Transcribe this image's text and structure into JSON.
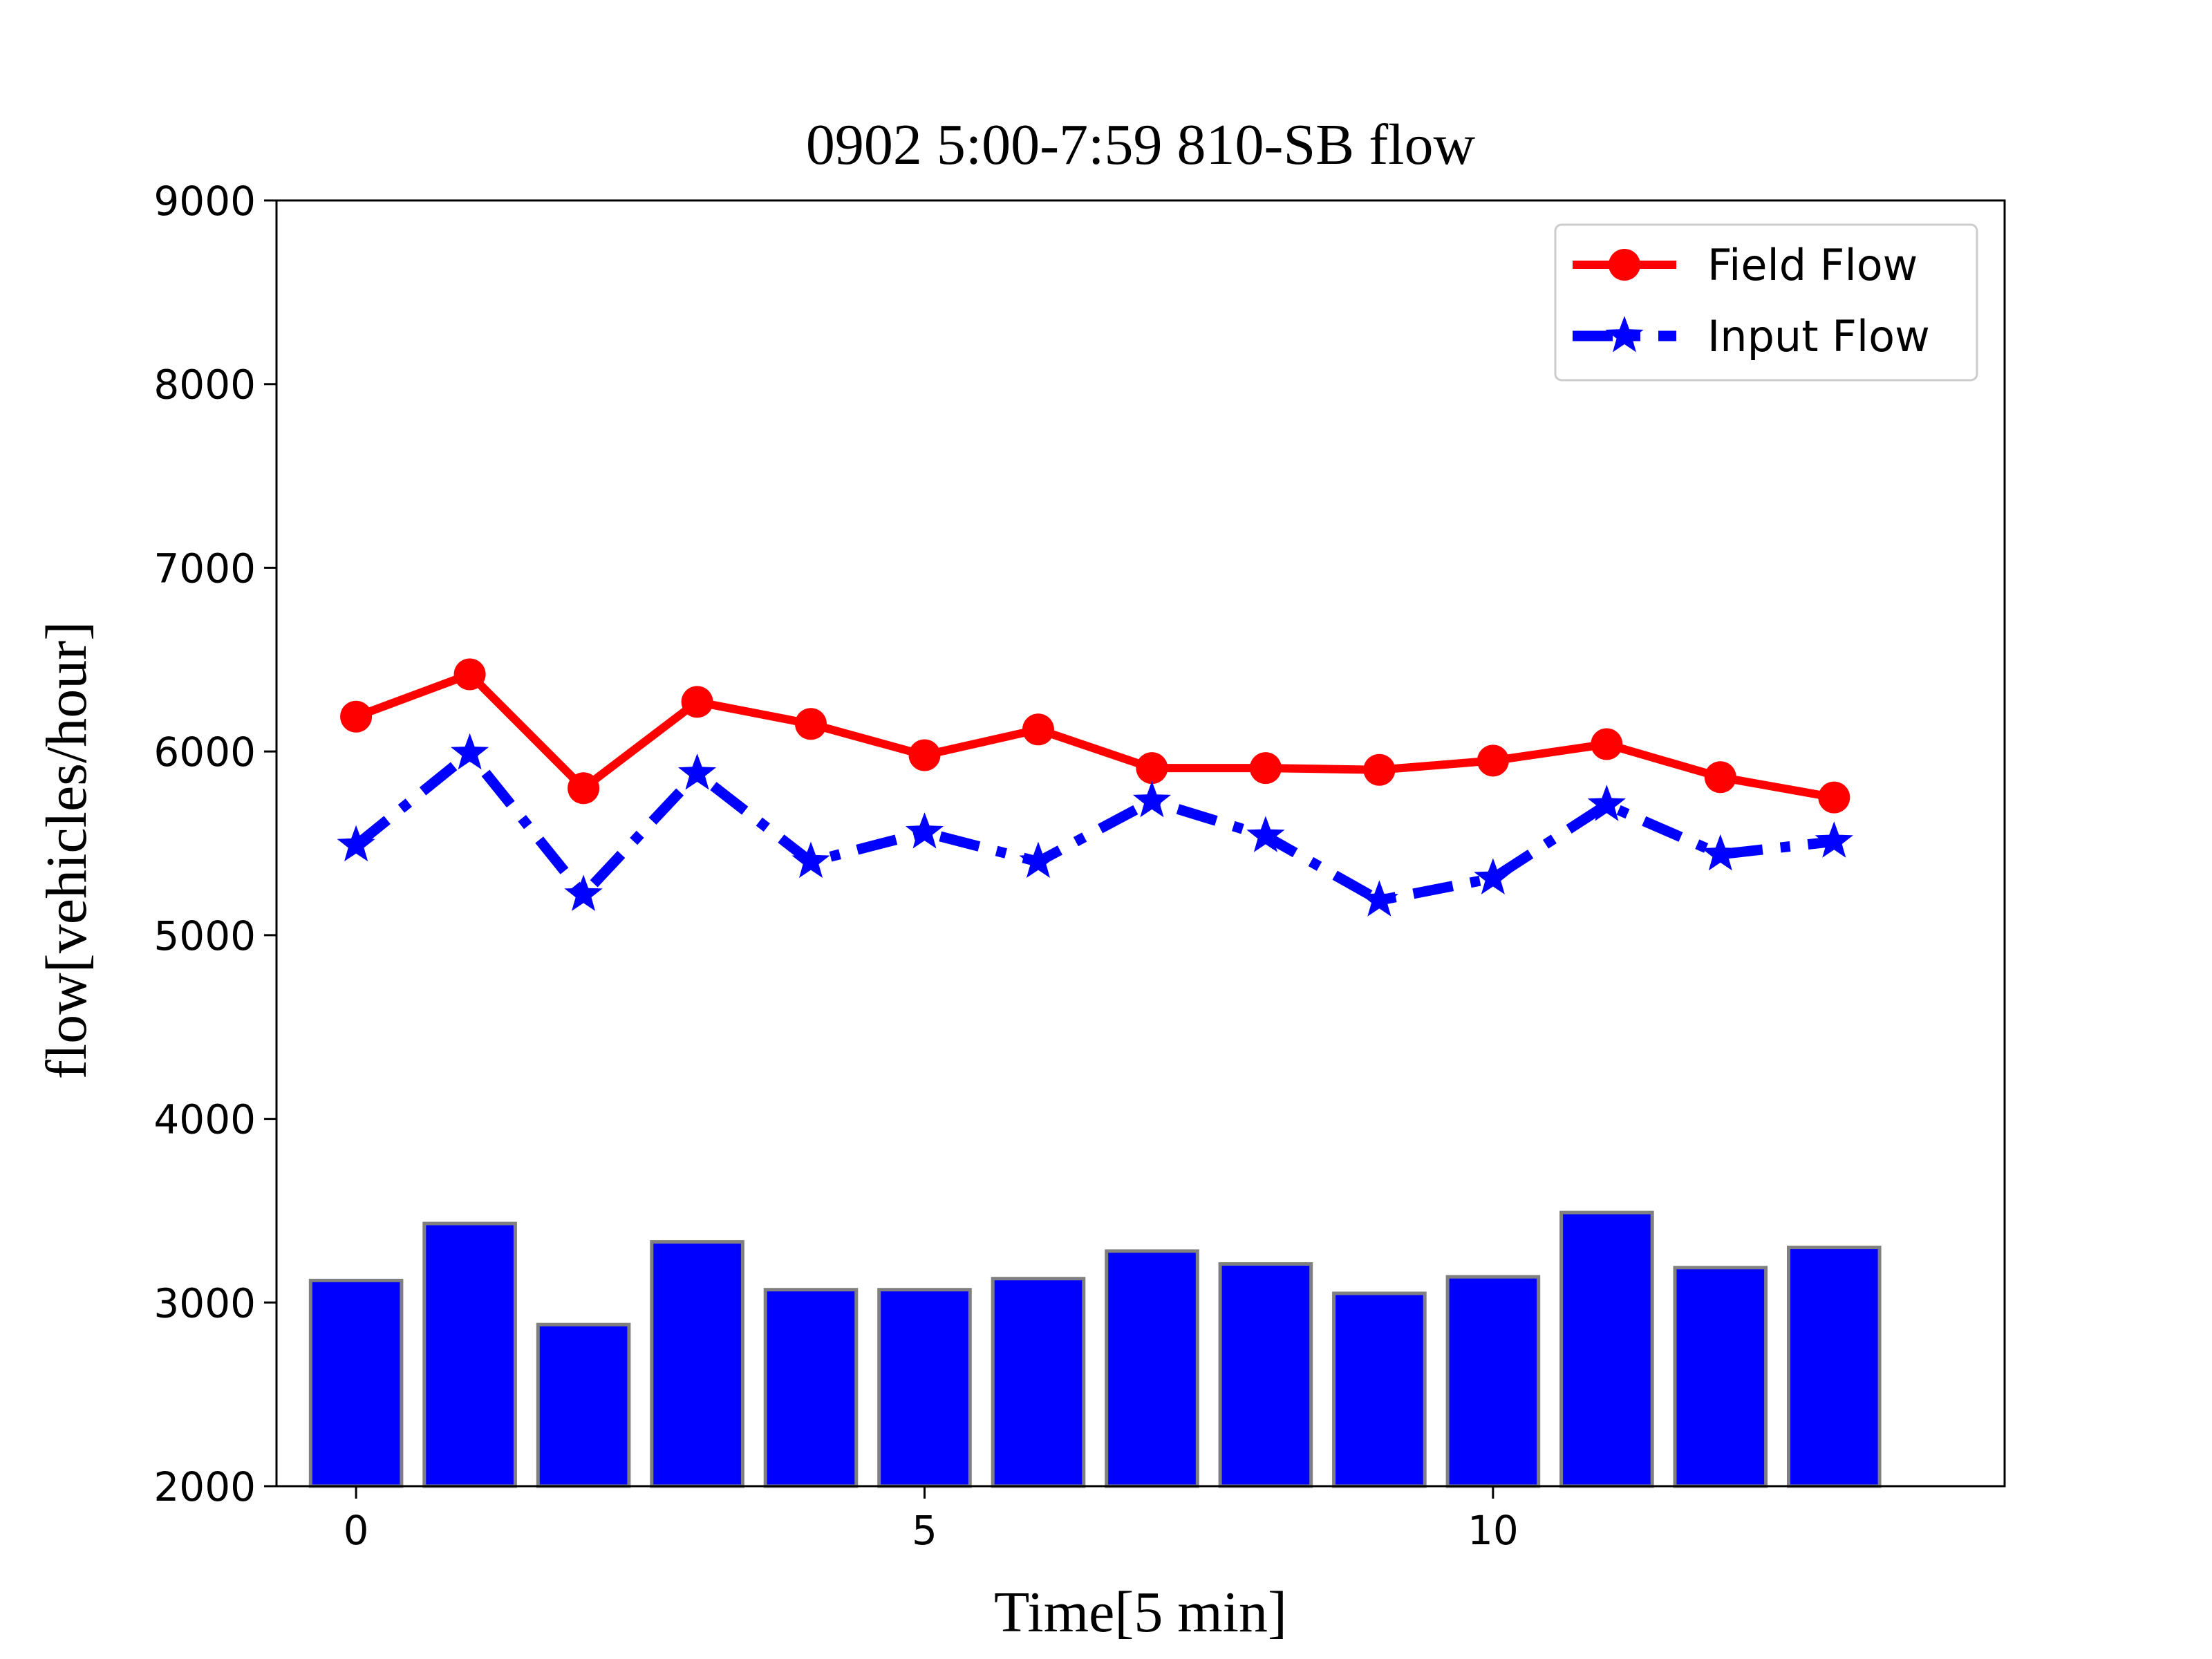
{
  "chart_data": {
    "type": "bar",
    "title": "0902 5:00-7:59  810-SB flow",
    "xlabel": "Time[5 min]",
    "ylabel": "flow[vehicles/hour]",
    "xlim": [
      -0.7,
      14.5
    ],
    "ylim": [
      2000,
      9000
    ],
    "xticks": [
      0,
      5,
      10
    ],
    "yticks": [
      2000,
      3000,
      4000,
      5000,
      6000,
      7000,
      8000,
      9000
    ],
    "legend_position": "top-right",
    "x": [
      0,
      1,
      2,
      3,
      4,
      5,
      6,
      7,
      8,
      9,
      10,
      11,
      12,
      13
    ],
    "bars": {
      "color": "#0000ff",
      "edge_color": "#808080",
      "values": [
        3120,
        3430,
        2880,
        3330,
        3070,
        3070,
        3130,
        3280,
        3210,
        3050,
        3140,
        3490,
        3190,
        3300
      ]
    },
    "series": [
      {
        "name": "Field Flow",
        "type": "line",
        "marker": "circle",
        "line_style": "solid",
        "color": "#ff0000",
        "values": [
          6190,
          6420,
          5800,
          6270,
          6150,
          5980,
          6120,
          5910,
          5910,
          5900,
          5950,
          6040,
          5860,
          5750
        ]
      },
      {
        "name": "Input Flow",
        "type": "line",
        "marker": "star",
        "line_style": "dashdot",
        "color": "#0000ff",
        "values": [
          5490,
          5990,
          5220,
          5880,
          5400,
          5560,
          5400,
          5730,
          5540,
          5190,
          5310,
          5710,
          5440,
          5510
        ]
      }
    ]
  }
}
